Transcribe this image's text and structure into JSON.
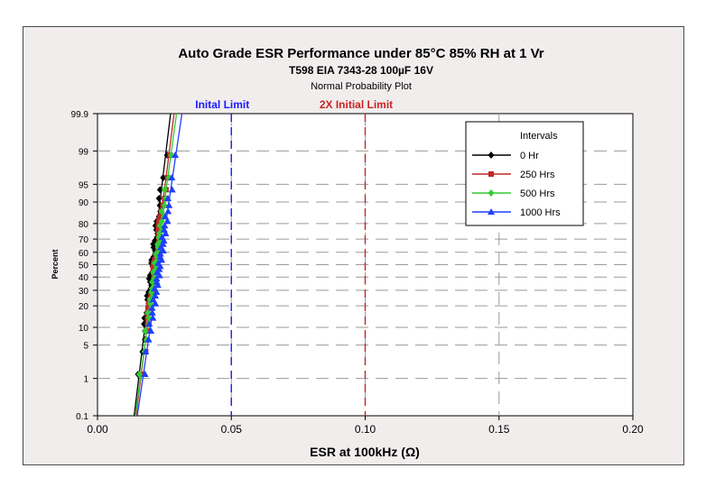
{
  "chart_data": {
    "type": "scatter",
    "title": "Auto Grade ESR Performance under 85°C 85% RH at 1 Vr",
    "subtitle": "T598 EIA 7343-28 100µF 16V",
    "subtitle2": "Normal Probability Plot",
    "xlabel": "ESR at 100kHz (Ω)",
    "ylabel": "Percent",
    "xlim": [
      0,
      0.2
    ],
    "x_ticks": [
      "0.00",
      "0.05",
      "0.10",
      "0.15",
      "0.20"
    ],
    "y_scale": "normal-probability",
    "y_ticks": [
      0.1,
      1,
      5,
      10,
      20,
      30,
      40,
      50,
      60,
      70,
      80,
      90,
      95,
      99,
      99.9
    ],
    "y_tick_labels": [
      "0.1",
      "1",
      "5",
      "10",
      "20",
      "30",
      "40",
      "50",
      "60",
      "70",
      "80",
      "90",
      "95",
      "99",
      "99.9"
    ],
    "grid": true,
    "legend": {
      "title": "Intervals",
      "position": "top-right"
    },
    "reference_lines": [
      {
        "label": "Inital Limit",
        "x": 0.05,
        "color": "#1a1aff"
      },
      {
        "label": "2X Initial Limit",
        "x": 0.1,
        "color": "#cc2222"
      }
    ],
    "series": [
      {
        "name": "0 Hr",
        "color": "#000000",
        "marker": "diamond",
        "mean": 0.0205,
        "sd": 0.0022
      },
      {
        "name": "250 Hrs",
        "color": "#c0292a",
        "marker": "square",
        "mean": 0.0215,
        "sd": 0.0023
      },
      {
        "name": "500 Hrs",
        "color": "#33cc33",
        "marker": "diamond",
        "mean": 0.0218,
        "sd": 0.0025
      },
      {
        "name": "1000 Hrs",
        "color": "#1f3fff",
        "marker": "triangle",
        "mean": 0.0232,
        "sd": 0.0027
      }
    ]
  }
}
